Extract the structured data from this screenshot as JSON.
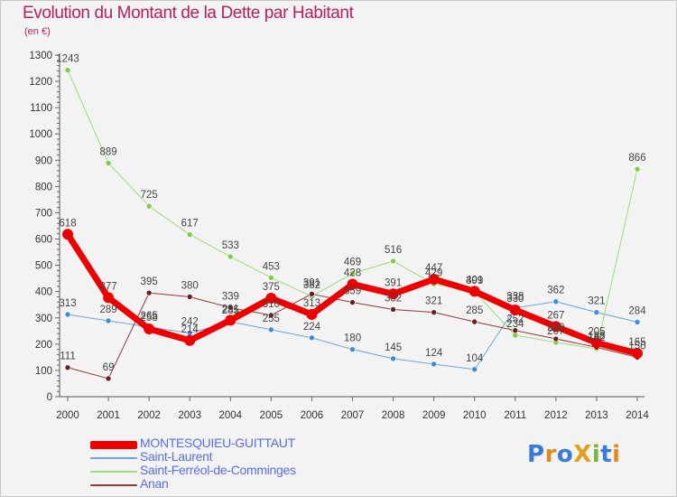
{
  "header": {
    "title": "Evolution du Montant de la Dette par Habitant",
    "unit": "(en €)"
  },
  "logo": {
    "text": "ProXiti",
    "letters": [
      "P",
      "r",
      "o",
      "X",
      "i",
      "t",
      "i"
    ],
    "letter_colors": [
      "#3a7ad8",
      "#e08a1e",
      "#3a7ad8",
      "#e0a020",
      "#7cb33b",
      "#3a7ad8",
      "#e08a1e"
    ]
  },
  "chart_data": {
    "type": "line",
    "title": "Evolution du Montant de la Dette par Habitant",
    "subtitle": "(en €)",
    "xlabel": "",
    "ylabel": "",
    "x": [
      "2000",
      "2001",
      "2002",
      "2003",
      "2004",
      "2005",
      "2006",
      "2007",
      "2008",
      "2009",
      "2010",
      "2011",
      "2012",
      "2013",
      "2014"
    ],
    "ylim": [
      0,
      1300
    ],
    "yticks": [
      0,
      100,
      200,
      300,
      400,
      500,
      600,
      700,
      800,
      900,
      1000,
      1100,
      1200,
      1300
    ],
    "grid": false,
    "legend_position": "bottom-left",
    "series": [
      {
        "name": "MONTESQUIEU-GUITTAUT",
        "color": "#ee0000",
        "marker_color": "#ee0000",
        "width": 7,
        "values": [
          618,
          377,
          258,
          214,
          291,
          375,
          313,
          428,
          391,
          447,
          401,
          330,
          267,
          205,
          165
        ]
      },
      {
        "name": "Saint-Laurent",
        "color": "#6aa6d8",
        "marker_color": "#3d8ad6",
        "width": 1,
        "values": [
          313,
          289,
          265,
          242,
          285,
          255,
          224,
          180,
          145,
          124,
          104,
          338,
          362,
          321,
          284
        ]
      },
      {
        "name": "Saint-Ferréol-de-Comminges",
        "color": "#99dd77",
        "marker_color": "#7ccc44",
        "width": 1,
        "values": [
          1243,
          889,
          725,
          617,
          533,
          453,
          382,
          469,
          516,
          429,
          399,
          234,
          207,
          182,
          866
        ]
      },
      {
        "name": "Anan",
        "color": "#8b3a3a",
        "marker_color": "#6b1f1f",
        "width": 1,
        "values": [
          111,
          69,
          395,
          380,
          339,
          310,
          391,
          359,
          332,
          321,
          285,
          252,
          220,
          188,
          150
        ]
      }
    ]
  }
}
